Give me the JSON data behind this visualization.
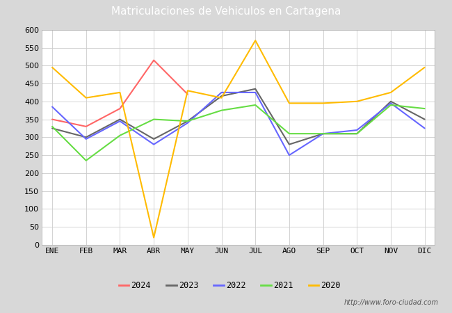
{
  "title": "Matriculaciones de Vehiculos en Cartagena",
  "months": [
    "ENE",
    "FEB",
    "MAR",
    "ABR",
    "MAY",
    "JUN",
    "JUL",
    "AGO",
    "SEP",
    "OCT",
    "NOV",
    "DIC"
  ],
  "series": {
    "2024": [
      350,
      330,
      380,
      515,
      420,
      null,
      null,
      null,
      null,
      null,
      null,
      null
    ],
    "2023": [
      325,
      300,
      350,
      295,
      345,
      415,
      435,
      280,
      310,
      310,
      400,
      350
    ],
    "2022": [
      385,
      295,
      345,
      280,
      340,
      425,
      425,
      250,
      310,
      320,
      395,
      325
    ],
    "2021": [
      330,
      235,
      305,
      350,
      345,
      375,
      390,
      310,
      310,
      310,
      390,
      380
    ],
    "2020": [
      495,
      410,
      425,
      20,
      430,
      410,
      570,
      395,
      395,
      400,
      425,
      495
    ]
  },
  "colors": {
    "2024": "#ff6666",
    "2023": "#666666",
    "2022": "#6666ff",
    "2021": "#66dd44",
    "2020": "#ffbb00"
  },
  "ylim": [
    0,
    600
  ],
  "yticks": [
    0,
    50,
    100,
    150,
    200,
    250,
    300,
    350,
    400,
    450,
    500,
    550,
    600
  ],
  "title_bg_color": "#5b8fd4",
  "title_color": "white",
  "plot_bg_color": "#ffffff",
  "outer_bg_color": "#d8d8d8",
  "border_color": "#4477bb",
  "footer_text": "http://www.foro-ciudad.com",
  "title_fontsize": 11,
  "legend_fontsize": 8.5,
  "axis_fontsize": 8,
  "linewidth": 1.5
}
